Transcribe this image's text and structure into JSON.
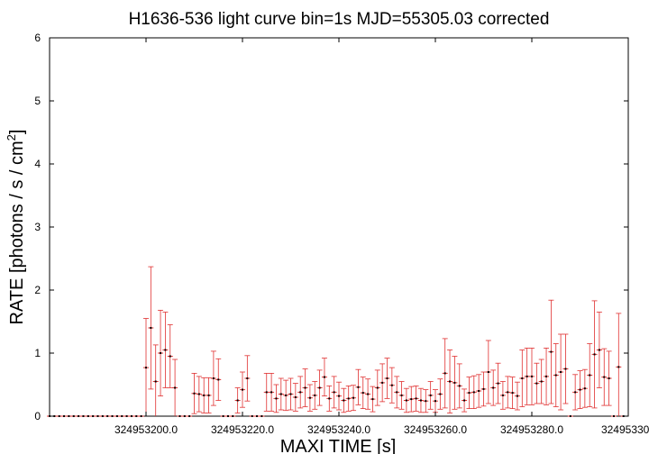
{
  "chart_data": {
    "type": "scatter",
    "title": "H1636-536 light curve bin=1s MJD=55305.03 corrected",
    "xlabel": "MAXI TIME [s]",
    "ylabel": "RATE [photons / s / cm",
    "ylabel_sup": "2",
    "ylabel_close": "]",
    "xlim": [
      324953180,
      324953300
    ],
    "ylim": [
      0,
      6
    ],
    "x_ticks": [
      324953200,
      324953220,
      324953240,
      324953260,
      324953280,
      324953300
    ],
    "x_tick_labels": [
      "324953200.0",
      "324953220.0",
      "324953240.0",
      "324953260.0",
      "324953280.0",
      "324953300"
    ],
    "y_ticks": [
      0,
      1,
      2,
      3,
      4,
      5,
      6
    ],
    "y_tick_labels": [
      "0",
      "1",
      "2",
      "3",
      "4",
      "5",
      "6"
    ],
    "grid": false,
    "legend": "none",
    "colors": {
      "series": "#e03030",
      "axes": "#000000"
    },
    "series": [
      {
        "x": [
          324953180,
          324953181,
          324953182,
          324953183,
          324953184,
          324953185,
          324953186,
          324953187,
          324953188,
          324953189,
          324953190,
          324953191,
          324953192,
          324953193,
          324953194,
          324953195,
          324953196,
          324953197,
          324953198,
          324953199,
          324953200,
          324953201,
          324953202,
          324953203,
          324953204,
          324953205,
          324953206,
          324953207,
          324953208,
          324953209,
          324953210,
          324953211,
          324953212,
          324953213,
          324953214,
          324953215,
          324953216,
          324953217,
          324953218,
          324953219,
          324953220,
          324953221,
          324953222,
          324953223,
          324953224,
          324953225,
          324953226,
          324953227,
          324953228,
          324953229,
          324953230,
          324953231,
          324953232,
          324953233,
          324953234,
          324953235,
          324953236,
          324953237,
          324953238,
          324953239,
          324953240,
          324953241,
          324953242,
          324953243,
          324953244,
          324953245,
          324953246,
          324953247,
          324953248,
          324953249,
          324953250,
          324953251,
          324953252,
          324953253,
          324953254,
          324953255,
          324953256,
          324953257,
          324953258,
          324953259,
          324953260,
          324953261,
          324953262,
          324953263,
          324953264,
          324953265,
          324953266,
          324953267,
          324953268,
          324953269,
          324953270,
          324953271,
          324953272,
          324953273,
          324953274,
          324953275,
          324953276,
          324953277,
          324953278,
          324953279,
          324953280,
          324953281,
          324953282,
          324953283,
          324953284,
          324953285,
          324953286,
          324953287,
          324953288,
          324953289,
          324953290,
          324953291,
          324953292,
          324953293,
          324953294,
          324953295,
          324953296,
          324953297,
          324953298,
          324953299
        ],
        "y": [
          0,
          0,
          0,
          0,
          0,
          0,
          0,
          0,
          0,
          0,
          0,
          0,
          0,
          0,
          0,
          0,
          0,
          0,
          0,
          0,
          0.77,
          1.4,
          0.55,
          1.0,
          1.05,
          0.95,
          0.45,
          0.0,
          0.0,
          0.0,
          0.36,
          0.35,
          0.33,
          0.33,
          0.6,
          0.58,
          0.0,
          0.0,
          0.0,
          0.25,
          0.42,
          0.6,
          0.0,
          0.0,
          0.0,
          0.38,
          0.38,
          0.28,
          0.35,
          0.33,
          0.35,
          0.3,
          0.38,
          0.45,
          0.29,
          0.33,
          0.45,
          0.62,
          0.28,
          0.38,
          0.32,
          0.25,
          0.28,
          0.29,
          0.46,
          0.37,
          0.35,
          0.27,
          0.45,
          0.53,
          0.6,
          0.49,
          0.38,
          0.33,
          0.25,
          0.27,
          0.28,
          0.25,
          0.24,
          0.33,
          0.24,
          0.35,
          0.68,
          0.55,
          0.53,
          0.48,
          0.25,
          0.37,
          0.38,
          0.4,
          0.43,
          0.7,
          0.45,
          0.52,
          0.33,
          0.38,
          0.37,
          0.32,
          0.6,
          0.63,
          0.63,
          0.52,
          0.55,
          0.63,
          1.02,
          0.65,
          0.7,
          0.75,
          0.0,
          0.38,
          0.42,
          0.44,
          0.65,
          0.98,
          1.05,
          0.62,
          0.6,
          0.0,
          0.78,
          0.0
        ],
        "err": [
          0,
          0,
          0,
          0,
          0,
          0,
          0,
          0,
          0,
          0,
          0,
          0,
          0,
          0,
          0,
          0,
          0,
          0,
          0,
          0,
          0.78,
          0.97,
          0.58,
          0.68,
          0.6,
          0.5,
          0.45,
          0,
          0,
          0,
          0.32,
          0.28,
          0.28,
          0.28,
          0.43,
          0.33,
          0,
          0,
          0,
          0.2,
          0.28,
          0.36,
          0,
          0,
          0,
          0.3,
          0.3,
          0.22,
          0.25,
          0.24,
          0.25,
          0.22,
          0.25,
          0.3,
          0.21,
          0.22,
          0.28,
          0.3,
          0.2,
          0.25,
          0.22,
          0.19,
          0.2,
          0.2,
          0.28,
          0.25,
          0.24,
          0.2,
          0.28,
          0.3,
          0.32,
          0.28,
          0.25,
          0.22,
          0.19,
          0.2,
          0.2,
          0.19,
          0.18,
          0.22,
          0.18,
          0.24,
          0.55,
          0.5,
          0.42,
          0.35,
          0.18,
          0.25,
          0.26,
          0.26,
          0.27,
          0.5,
          0.28,
          0.32,
          0.22,
          0.25,
          0.25,
          0.22,
          0.45,
          0.45,
          0.45,
          0.32,
          0.35,
          0.45,
          0.82,
          0.5,
          0.6,
          0.55,
          0,
          0.28,
          0.3,
          0.3,
          0.5,
          0.85,
          0.6,
          0.45,
          0.43,
          0,
          0.85,
          0
        ]
      }
    ]
  }
}
